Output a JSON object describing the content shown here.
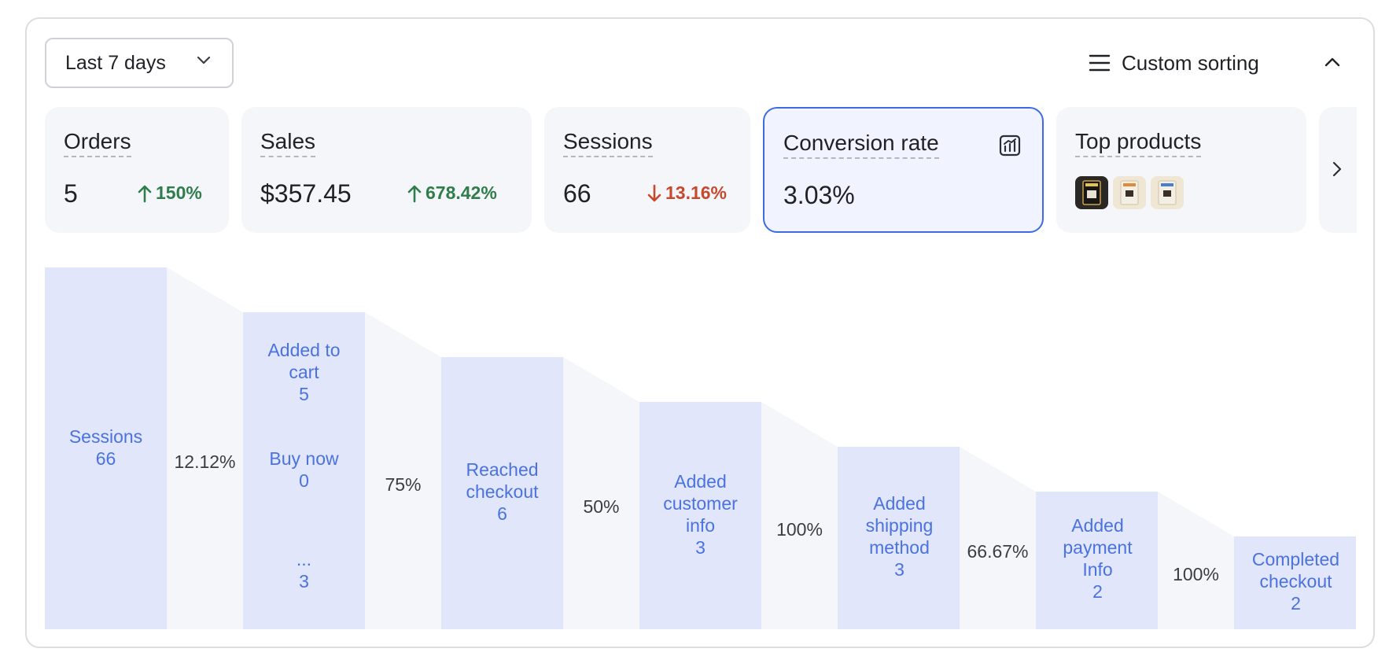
{
  "toolbar": {
    "date_range": "Last 7 days",
    "sort_label": "Custom sorting"
  },
  "metrics": [
    {
      "title": "Orders",
      "value": "5",
      "delta": "150%",
      "trend": "up"
    },
    {
      "title": "Sales",
      "value": "$357.45",
      "delta": "678.42%",
      "trend": "up"
    },
    {
      "title": "Sessions",
      "value": "66",
      "delta": "13.16%",
      "trend": "down"
    },
    {
      "title": "Conversion rate",
      "value": "3.03%"
    },
    {
      "title": "Top products"
    }
  ],
  "colors": {
    "accent": "#3e6be0",
    "bar": "#e1e6fb",
    "bar_text": "#4a72e0",
    "up": "#2e7d4a",
    "down": "#c8482c"
  },
  "chart_data": {
    "type": "bar",
    "categories": [
      "Sessions",
      "Added to cart",
      "Reached checkout",
      "Added customer info",
      "Added shipping method",
      "Added payment Info",
      "Completed checkout"
    ],
    "values": [
      66,
      5,
      6,
      3,
      3,
      2,
      2
    ],
    "conversion_rates": [
      "12.12%",
      "75%",
      "50%",
      "100%",
      "66.67%",
      "100%"
    ],
    "stage_labels": {
      "sessions": {
        "name": "Sessions",
        "value": "66"
      },
      "added_to_cart": {
        "name": "Added to cart",
        "value": "5"
      },
      "buy_now": {
        "name": "Buy now",
        "value": "0"
      },
      "other": {
        "name": "...",
        "value": "3"
      },
      "reached_checkout": {
        "name": "Reached checkout",
        "value": "6"
      },
      "customer_info": {
        "name": "Added customer info",
        "value": "3"
      },
      "shipping_method": {
        "name": "Added shipping method",
        "value": "3"
      },
      "payment_info": {
        "name": "Added payment Info",
        "value": "2"
      },
      "completed_checkout": {
        "name": "Completed checkout",
        "value": "2"
      }
    }
  }
}
